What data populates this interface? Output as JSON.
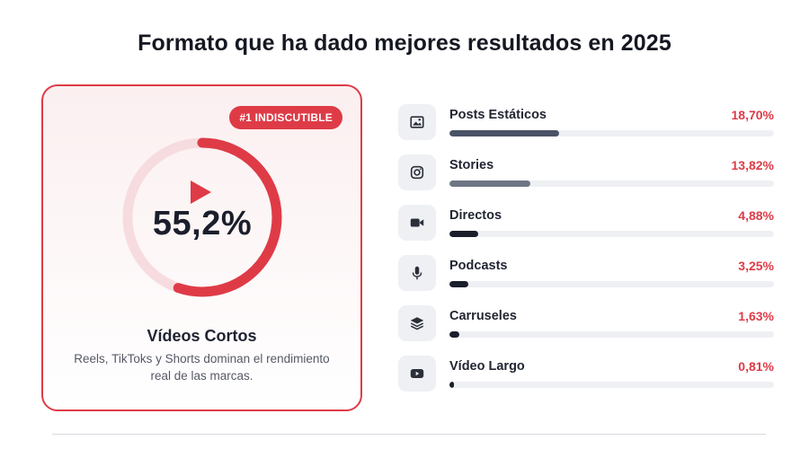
{
  "page": {
    "title": "Formato que ha dado mejores resultados en 2025"
  },
  "hero": {
    "badge": "#1 INDISCUTIBLE",
    "value_label": "55,2%",
    "title": "Vídeos Cortos",
    "description": "Reels, TikToks y Shorts dominan el rendimiento real de las marcas.",
    "play_icon": "play-icon",
    "color": "#de3b47"
  },
  "colors": {
    "accent": "#de3b47",
    "bar_dark": "#1b1e2b",
    "bar_slate": "#4a5266",
    "bar_gray": "#6e7585",
    "track": "#eef0f4"
  },
  "chart_data": [
    {
      "type": "pie",
      "title": "",
      "categories": [
        "Vídeos Cortos"
      ],
      "values": [
        55.2
      ],
      "value_labels": [
        "55,2%"
      ]
    },
    {
      "type": "bar",
      "orientation": "horizontal",
      "title": "",
      "categories": [
        "Posts Estáticos",
        "Stories",
        "Directos",
        "Podcasts",
        "Carruseles",
        "Vídeo Largo"
      ],
      "values": [
        18.7,
        13.82,
        4.88,
        3.25,
        1.63,
        0.81
      ],
      "value_labels": [
        "18,70%",
        "13,82%",
        "4,88%",
        "3,25%",
        "1,63%",
        "0,81%"
      ],
      "icons": [
        "image-icon",
        "instagram-icon",
        "video-camera-icon",
        "microphone-icon",
        "layers-icon",
        "youtube-icon"
      ],
      "xlim": [
        0,
        55.2
      ],
      "grid": false,
      "legend": "none"
    }
  ]
}
